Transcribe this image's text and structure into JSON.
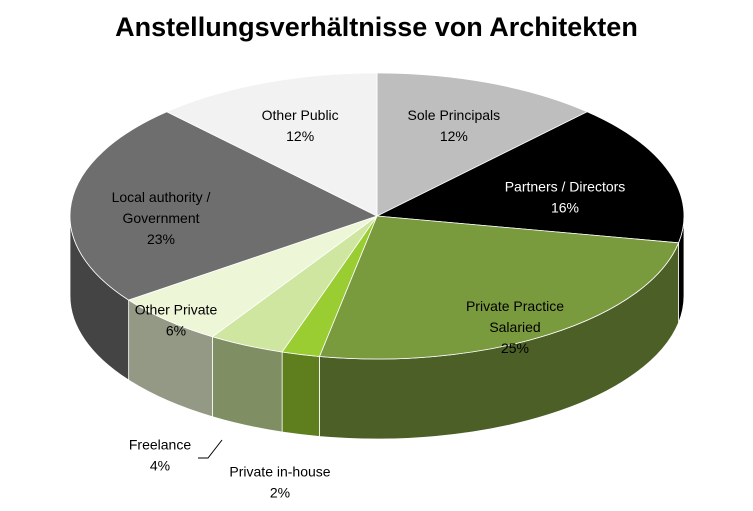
{
  "chart_data": {
    "type": "pie",
    "title": "Anstellungsverhältnisse von Architekten",
    "slices": [
      {
        "name": "Sole Principals",
        "value": 12,
        "label": "12%",
        "color": "#bebebe"
      },
      {
        "name": "Partners / Directors",
        "value": 16,
        "label": "16%",
        "color": "#000000"
      },
      {
        "name": "Private Practice Salaried",
        "value": 25,
        "label": "25%",
        "color": "#7a9a3e"
      },
      {
        "name": "Private in-house",
        "value": 2,
        "label": "2%",
        "color": "#9acd32"
      },
      {
        "name": "Freelance",
        "value": 4,
        "label": "4%",
        "color": "#cfe6a0"
      },
      {
        "name": "Other Private",
        "value": 6,
        "label": "6%",
        "color": "#eef6d8"
      },
      {
        "name": "Local authority / Government",
        "value": 23,
        "label": "23%",
        "color": "#6e6e6e"
      },
      {
        "name": "Other Public",
        "value": 12,
        "label": "12%",
        "color": "#f2f2f2"
      }
    ],
    "legend": "none"
  }
}
